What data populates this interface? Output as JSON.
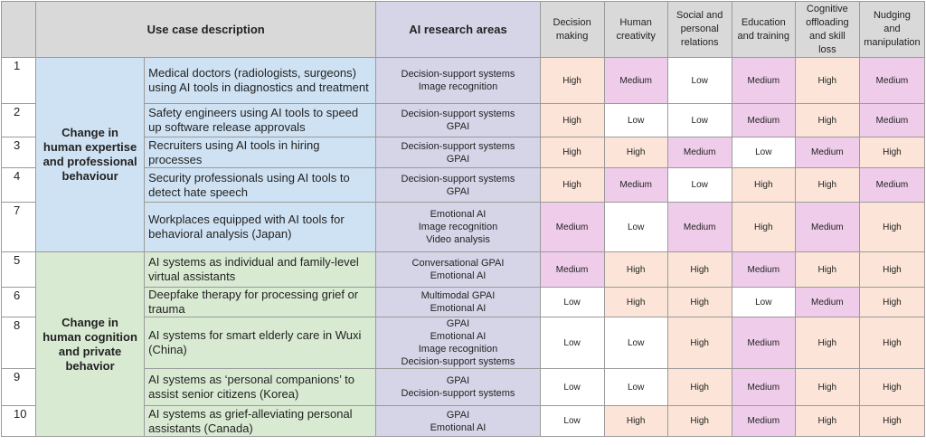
{
  "header": {
    "use_case": "Use case description",
    "ai_areas": "AI research areas",
    "dimensions": [
      [
        "Decision",
        "making"
      ],
      [
        "Human",
        "creativity"
      ],
      [
        "Social and",
        "personal",
        "relations"
      ],
      [
        "Education",
        "and training"
      ],
      [
        "Cognitive",
        "offloading",
        "and skill",
        "loss"
      ],
      [
        "Nudging",
        "and",
        "manipulation"
      ]
    ]
  },
  "groups": [
    {
      "label": [
        "Change in",
        "human expertise",
        "and professional",
        "behaviour"
      ],
      "rows": [
        {
          "num": "1",
          "desc": "Medical doctors (radiologists, surgeons) using AI tools in diagnostics and treatment",
          "areas": [
            "Decision-support systems",
            "Image recognition"
          ],
          "ratings": [
            "High",
            "Medium",
            "Low",
            "Medium",
            "High",
            "Medium"
          ]
        },
        {
          "num": "2",
          "desc": "Safety engineers using AI tools to speed up software release approvals",
          "areas": [
            "Decision-support systems",
            "GPAI"
          ],
          "ratings": [
            "High",
            "Low",
            "Low",
            "Medium",
            "High",
            "Medium"
          ]
        },
        {
          "num": "3",
          "desc": "Recruiters using AI tools in hiring processes",
          "areas": [
            "Decision-support systems",
            "GPAI"
          ],
          "ratings": [
            "High",
            "High",
            "Medium",
            "Low",
            "Medium",
            "High"
          ]
        },
        {
          "num": "4",
          "desc": "Security professionals using AI tools to detect hate speech",
          "areas": [
            "Decision-support systems",
            "GPAI"
          ],
          "ratings": [
            "High",
            "Medium",
            "Low",
            "High",
            "High",
            "Medium"
          ]
        },
        {
          "num": "7",
          "desc": "Workplaces equipped with AI tools for behavioral analysis (Japan)",
          "areas": [
            "Emotional AI",
            "Image recognition",
            "Video analysis"
          ],
          "ratings": [
            "Medium",
            "Low",
            "Medium",
            "High",
            "Medium",
            "High"
          ]
        }
      ]
    },
    {
      "label": [
        "Change in",
        "human cognition",
        "and private",
        "behavior"
      ],
      "rows": [
        {
          "num": "5",
          "desc": "AI systems as individual and family-level virtual assistants",
          "areas": [
            "Conversational GPAI",
            "Emotional AI"
          ],
          "ratings": [
            "Medium",
            "High",
            "High",
            "Medium",
            "High",
            "High"
          ]
        },
        {
          "num": "6",
          "desc": "Deepfake therapy for processing grief or trauma",
          "areas": [
            "Multimodal GPAI",
            "Emotional AI"
          ],
          "ratings": [
            "Low",
            "High",
            "High",
            "Low",
            "Medium",
            "High"
          ]
        },
        {
          "num": "8",
          "desc": "AI systems for smart elderly care in Wuxi (China)",
          "areas": [
            "GPAI",
            "Emotional AI",
            "Image recognition",
            "Decision-support systems"
          ],
          "ratings": [
            "Low",
            "Low",
            "High",
            "Medium",
            "High",
            "High"
          ]
        },
        {
          "num": "9",
          "desc": "AI systems as ‘personal companions’ to assist senior citizens (Korea)",
          "areas": [
            "GPAI",
            "Decision-support systems"
          ],
          "ratings": [
            "Low",
            "Low",
            "High",
            "Medium",
            "High",
            "High"
          ]
        },
        {
          "num": "10",
          "desc": "AI systems as grief-alleviating personal assistants (Canada)",
          "areas": [
            "GPAI",
            "Emotional AI"
          ],
          "ratings": [
            "Low",
            "High",
            "High",
            "Medium",
            "High",
            "High"
          ]
        }
      ]
    }
  ]
}
